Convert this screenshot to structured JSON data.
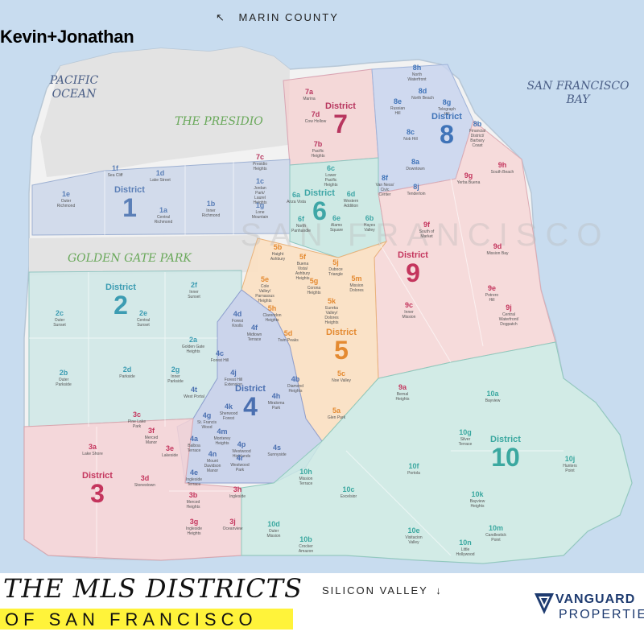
{
  "header": {
    "brand": "Kevin+Jonathan",
    "north_arrow": "↖",
    "north_label": "MARIN COUNTY"
  },
  "water_labels": {
    "pacific_line1": "PACIFIC",
    "pacific_line2": "OCEAN",
    "bay_line1": "SAN FRANCISCO",
    "bay_line2": "BAY"
  },
  "parks": {
    "presidio": "THE PRESIDIO",
    "golden_gate": "GOLDEN GATE PARK"
  },
  "watermark": "SAN FRANCISCO",
  "district_word": "District",
  "districts": [
    {
      "num": "1",
      "color": "#5b7fb7"
    },
    {
      "num": "2",
      "color": "#3c9cb2"
    },
    {
      "num": "3",
      "color": "#c4355d"
    },
    {
      "num": "4",
      "color": "#4a6fb0"
    },
    {
      "num": "5",
      "color": "#e48a31"
    },
    {
      "num": "6",
      "color": "#3ea6a6"
    },
    {
      "num": "7",
      "color": "#b8365f"
    },
    {
      "num": "8",
      "color": "#3f73b8"
    },
    {
      "num": "9",
      "color": "#c4355d"
    },
    {
      "num": "10",
      "color": "#3ba8a0"
    }
  ],
  "neighborhoods": [
    {
      "code": "1a",
      "name": "Central Richmond"
    },
    {
      "code": "1b",
      "name": "Inner Richmond"
    },
    {
      "code": "1c",
      "name": "Jordan Park/ Laurel Heights"
    },
    {
      "code": "1d",
      "name": "Lake Street"
    },
    {
      "code": "1e",
      "name": "Outer Richmond"
    },
    {
      "code": "1f",
      "name": "Sea Cliff"
    },
    {
      "code": "1g",
      "name": "Lone Mountain"
    },
    {
      "code": "2a",
      "name": "Golden Gate Heights"
    },
    {
      "code": "2b",
      "name": "Outer Parkside"
    },
    {
      "code": "2c",
      "name": "Outer Sunset"
    },
    {
      "code": "2d",
      "name": "Parkside"
    },
    {
      "code": "2e",
      "name": "Central Sunset"
    },
    {
      "code": "2f",
      "name": "Inner Sunset"
    },
    {
      "code": "2g",
      "name": "Inner Parkside"
    },
    {
      "code": "3a",
      "name": "Lake Shore"
    },
    {
      "code": "3b",
      "name": "Merced Heights"
    },
    {
      "code": "3c",
      "name": "Pine Lake Park"
    },
    {
      "code": "3d",
      "name": "Stonestown"
    },
    {
      "code": "3e",
      "name": "Lakeside"
    },
    {
      "code": "3f",
      "name": "Merced Manor"
    },
    {
      "code": "3g",
      "name": "Ingleside Heights"
    },
    {
      "code": "3h",
      "name": "Ingleside"
    },
    {
      "code": "3j",
      "name": "Oceanview"
    },
    {
      "code": "4a",
      "name": "Balboa Terrace"
    },
    {
      "code": "4b",
      "name": "Diamond Heights"
    },
    {
      "code": "4c",
      "name": "Forest Hill"
    },
    {
      "code": "4d",
      "name": "Forest Knolls"
    },
    {
      "code": "4e",
      "name": "Ingleside Terrace"
    },
    {
      "code": "4f",
      "name": "Midtown Terrace"
    },
    {
      "code": "4g",
      "name": "St. Francis Wood"
    },
    {
      "code": "4h",
      "name": "Miraloma Park"
    },
    {
      "code": "4j",
      "name": "Forest Hill Extension"
    },
    {
      "code": "4k",
      "name": "Sherwood Forest"
    },
    {
      "code": "4m",
      "name": "Monterey Heights"
    },
    {
      "code": "4n",
      "name": "Mount Davidson Manor"
    },
    {
      "code": "4p",
      "name": "Westwood Highlands"
    },
    {
      "code": "4r",
      "name": "Westwood Park"
    },
    {
      "code": "4s",
      "name": "Sunnyside"
    },
    {
      "code": "4t",
      "name": "West Portal"
    },
    {
      "code": "5a",
      "name": "Glen Park"
    },
    {
      "code": "5b",
      "name": "Haight Ashbury"
    },
    {
      "code": "5c",
      "name": "Noe Valley"
    },
    {
      "code": "5d",
      "name": "Twin Peaks"
    },
    {
      "code": "5e",
      "name": "Cole Valley/ Parnassus Heights"
    },
    {
      "code": "5f",
      "name": "Buena Vista/ Ashbury Heights"
    },
    {
      "code": "5g",
      "name": "Corona Heights"
    },
    {
      "code": "5h",
      "name": "Clarendon Heights"
    },
    {
      "code": "5j",
      "name": "Duboce Triangle"
    },
    {
      "code": "5k",
      "name": "Eureka Valley/ Dolores Heights"
    },
    {
      "code": "5m",
      "name": "Mission Dolores"
    },
    {
      "code": "6a",
      "name": "Anza Vista"
    },
    {
      "code": "6b",
      "name": "Hayes Valley"
    },
    {
      "code": "6c",
      "name": "Lower Pacific Heights"
    },
    {
      "code": "6d",
      "name": "Western Addition"
    },
    {
      "code": "6e",
      "name": "Alamo Square"
    },
    {
      "code": "6f",
      "name": "North Panhandle"
    },
    {
      "code": "7a",
      "name": "Marina"
    },
    {
      "code": "7b",
      "name": "Pacific Heights"
    },
    {
      "code": "7c",
      "name": "Presidio Heights"
    },
    {
      "code": "7d",
      "name": "Cow Hollow"
    },
    {
      "code": "8a",
      "name": "Downtown"
    },
    {
      "code": "8b",
      "name": "Financial District/ Barbary Coast"
    },
    {
      "code": "8c",
      "name": "Nob Hill"
    },
    {
      "code": "8d",
      "name": "North Beach"
    },
    {
      "code": "8e",
      "name": "Russian Hill"
    },
    {
      "code": "8f",
      "name": "Van Ness/ Civic Center"
    },
    {
      "code": "8g",
      "name": "Telegraph Hill"
    },
    {
      "code": "8h",
      "name": "North Waterfront"
    },
    {
      "code": "8j",
      "name": "Tenderloin"
    },
    {
      "code": "9a",
      "name": "Bernal Heights"
    },
    {
      "code": "9c",
      "name": "Inner Mission"
    },
    {
      "code": "9d",
      "name": "Mission Bay"
    },
    {
      "code": "9e",
      "name": "Potrero Hill"
    },
    {
      "code": "9f",
      "name": "South of Market"
    },
    {
      "code": "9g",
      "name": "Yerba Buena"
    },
    {
      "code": "9h",
      "name": "South Beach"
    },
    {
      "code": "9j",
      "name": "Central Waterfront/ Dogpatch"
    },
    {
      "code": "10a",
      "name": "Bayview"
    },
    {
      "code": "10b",
      "name": "Crocker Amazon"
    },
    {
      "code": "10c",
      "name": "Excelsior"
    },
    {
      "code": "10d",
      "name": "Outer Mission"
    },
    {
      "code": "10e",
      "name": "Visitacion Valley"
    },
    {
      "code": "10f",
      "name": "Portola"
    },
    {
      "code": "10g",
      "name": "Silver Terrace"
    },
    {
      "code": "10h",
      "name": "Mission Terrace"
    },
    {
      "code": "10j",
      "name": "Hunters Point"
    },
    {
      "code": "10k",
      "name": "Bayview Heights"
    },
    {
      "code": "10m",
      "name": "Candlestick Point"
    },
    {
      "code": "10n",
      "name": "Little Hollywood"
    }
  ],
  "footer": {
    "title_line1": "THE MLS DISTRICTS",
    "title_line2": "OF SAN FRANCISCO",
    "south_label": "SILICON VALLEY",
    "south_arrow": "↓",
    "logo_line1": "VANGUARD",
    "logo_line2": "PROPERTIES"
  },
  "colors": {
    "water": "#c8dcef",
    "land": "#f2f2f2",
    "park": "#e3e3e3",
    "yellow_band": "#fff33a",
    "logo_navy": "#1e3b70"
  }
}
